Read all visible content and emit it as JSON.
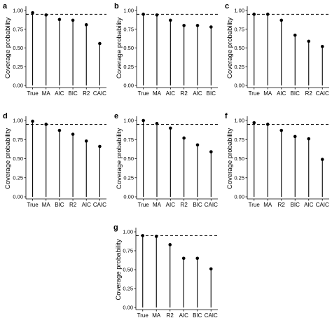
{
  "chart_data": [
    {
      "type": "lollipop",
      "panel": "a",
      "categories": [
        "True",
        "MA",
        "AIC",
        "BIC",
        "R2",
        "CAIC"
      ],
      "values": [
        0.97,
        0.94,
        0.88,
        0.87,
        0.81,
        0.56
      ],
      "ylabel": "Coverage probability",
      "yticks": [
        "0.00",
        "0.25",
        "0.50",
        "0.75",
        "1.00"
      ],
      "ylim": [
        0,
        1.0
      ],
      "reference_line": 0.95
    },
    {
      "type": "lollipop",
      "panel": "b",
      "categories": [
        "True",
        "MA",
        "AIC",
        "R2",
        "AIC",
        "BIC"
      ],
      "values": [
        0.95,
        0.94,
        0.87,
        0.8,
        0.8,
        0.78
      ],
      "ylabel": "Coverage probability",
      "yticks": [
        "0.00",
        "0.25",
        "0.50",
        "0.75",
        "1.00"
      ],
      "ylim": [
        0,
        1.0
      ],
      "reference_line": 0.95
    },
    {
      "type": "lollipop",
      "panel": "c",
      "categories": [
        "True",
        "MA",
        "AIC",
        "BIC",
        "R2",
        "CAIC"
      ],
      "values": [
        0.95,
        0.95,
        0.87,
        0.67,
        0.59,
        0.52
      ],
      "ylabel": "Coverage probability",
      "yticks": [
        "0.00",
        "0.25",
        "0.50",
        "0.75",
        "1.00"
      ],
      "ylim": [
        0,
        1.0
      ],
      "reference_line": 0.95
    },
    {
      "type": "lollipop",
      "panel": "d",
      "categories": [
        "True",
        "MA",
        "BIC",
        "R2",
        "AIC",
        "CAIC"
      ],
      "values": [
        0.99,
        0.95,
        0.87,
        0.82,
        0.73,
        0.66
      ],
      "ylabel": "Coverage probability",
      "yticks": [
        "0.00",
        "0.25",
        "0.50",
        "0.75",
        "1.00"
      ],
      "ylim": [
        0,
        1.0
      ],
      "reference_line": 0.95
    },
    {
      "type": "lollipop",
      "panel": "e",
      "categories": [
        "True",
        "MA",
        "AIC",
        "R2",
        "BIC",
        "CAIC"
      ],
      "values": [
        1.0,
        0.96,
        0.9,
        0.77,
        0.68,
        0.59
      ],
      "ylabel": "Coverage probability",
      "yticks": [
        "0.00",
        "0.25",
        "0.50",
        "0.75",
        "1.00"
      ],
      "ylim": [
        0,
        1.0
      ],
      "reference_line": 0.95
    },
    {
      "type": "lollipop",
      "panel": "f",
      "categories": [
        "True",
        "MA",
        "R2",
        "BIC",
        "AIC",
        "CAIC"
      ],
      "values": [
        0.97,
        0.95,
        0.87,
        0.79,
        0.76,
        0.49
      ],
      "ylabel": "Coverage probability",
      "yticks": [
        "0.00",
        "0.25",
        "0.50",
        "0.75",
        "1.00"
      ],
      "ylim": [
        0,
        1.0
      ],
      "reference_line": 0.95
    },
    {
      "type": "lollipop",
      "panel": "g",
      "categories": [
        "True",
        "MA",
        "R2",
        "AIC",
        "BIC",
        "CAIC"
      ],
      "values": [
        0.95,
        0.94,
        0.83,
        0.65,
        0.65,
        0.51
      ],
      "ylabel": "Coverage probability",
      "yticks": [
        "0.00",
        "0.25",
        "0.50",
        "0.75",
        "1.00"
      ],
      "ylim": [
        0,
        1.0
      ],
      "reference_line": 0.95
    }
  ],
  "style": {
    "stem_color": "#000000",
    "point_color": "#000000",
    "reference_line_color": "#000000",
    "axis_color": "#000000"
  }
}
